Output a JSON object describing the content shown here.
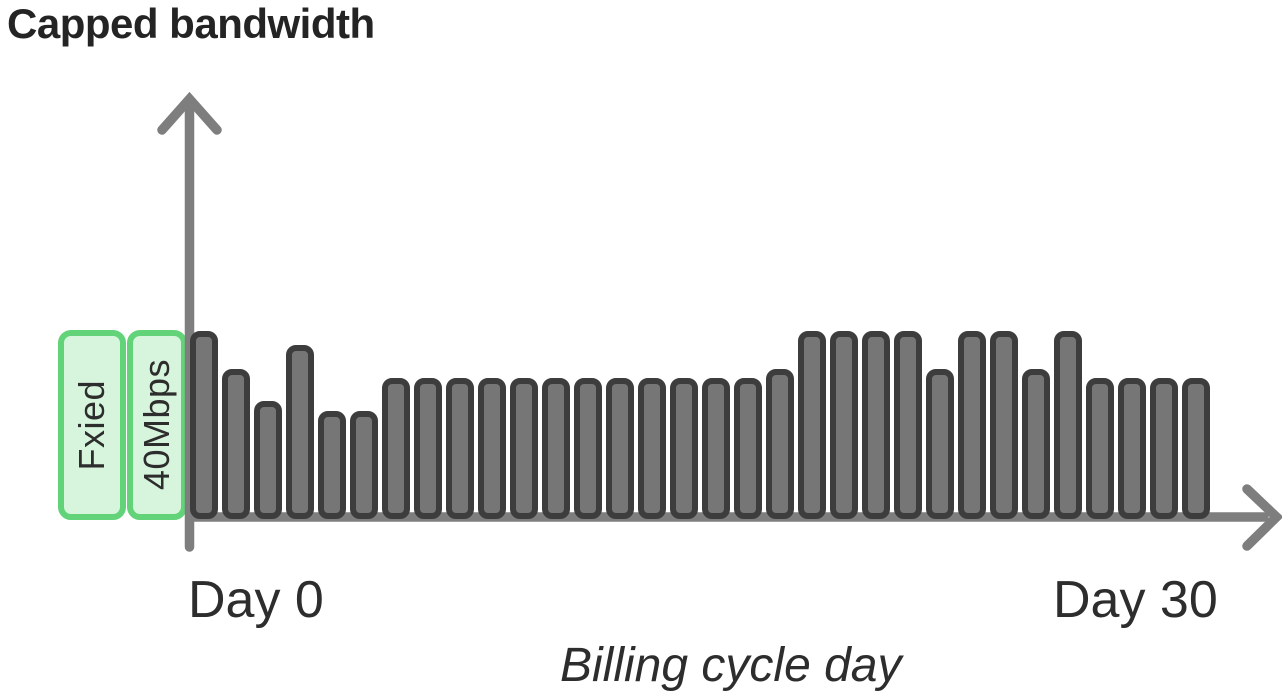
{
  "title": "Capped bandwidth",
  "cap_box": {
    "labels": [
      "Fxied",
      "40Mbps"
    ]
  },
  "axis": {
    "x_start_label": "Day 0",
    "x_end_label": "Day 30",
    "x_title": "Billing cycle day"
  },
  "colors": {
    "axis": "#7e7e7e",
    "bar_fill": "#767676",
    "bar_border": "#3d3d3d",
    "cap_box_fill": "#d7f5dc",
    "cap_box_border": "#63d379",
    "text": "#242424"
  },
  "chart_data": {
    "type": "bar",
    "title": "Capped bandwidth",
    "xlabel": "Billing cycle day",
    "ylabel": "",
    "x_tick_labels": [
      "Day 0",
      "Day 30"
    ],
    "units": "Mbps",
    "cap_value_mbps": 40,
    "cap_labels": [
      "Fxied",
      "40Mbps"
    ],
    "ylim": [
      0,
      45
    ],
    "n_bars": 32,
    "x": [
      0,
      1,
      2,
      3,
      4,
      5,
      6,
      7,
      8,
      9,
      10,
      11,
      12,
      13,
      14,
      15,
      16,
      17,
      18,
      19,
      20,
      21,
      22,
      23,
      24,
      25,
      26,
      27,
      28,
      29,
      30,
      31
    ],
    "values": [
      40,
      32,
      25,
      37,
      23,
      23,
      30,
      30,
      30,
      30,
      30,
      30,
      30,
      30,
      30,
      30,
      30,
      30,
      32,
      40,
      40,
      40,
      40,
      32,
      40,
      40,
      32,
      40,
      30,
      30,
      30,
      30
    ],
    "legend": [],
    "grid": false
  }
}
